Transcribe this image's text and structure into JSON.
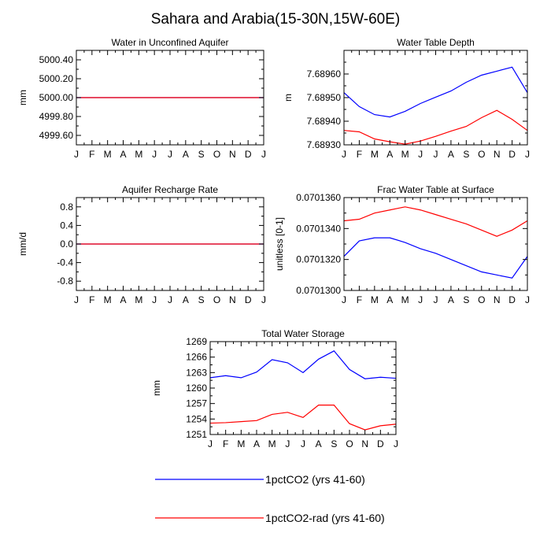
{
  "title": "Sahara and Arabia(15-30N,15W-60E)",
  "legend": [
    {
      "name": "1pctCO2 (yrs 41-60)",
      "color": "#0000ff"
    },
    {
      "name": "1pctCO2-rad (yrs 41-60)",
      "color": "#ff0000"
    }
  ],
  "chart_data": [
    {
      "type": "line",
      "title": "Water in Unconfined Aquifer",
      "ylabel": "mm",
      "x": [
        "J",
        "F",
        "M",
        "A",
        "M",
        "J",
        "J",
        "A",
        "S",
        "O",
        "N",
        "D",
        "J"
      ],
      "ylim": [
        4999.5,
        5000.5
      ],
      "yticks": [
        "4999.60",
        "4999.80",
        "5000.00",
        "5000.20",
        "5000.40"
      ],
      "ytick_values": [
        4999.6,
        4999.8,
        5000.0,
        5000.2,
        5000.4
      ],
      "series": [
        {
          "color": "#0000ff",
          "values": [
            5000,
            5000,
            5000,
            5000,
            5000,
            5000,
            5000,
            5000,
            5000,
            5000,
            5000,
            5000,
            5000
          ]
        },
        {
          "color": "#ff0000",
          "values": [
            5000,
            5000,
            5000,
            5000,
            5000,
            5000,
            5000,
            5000,
            5000,
            5000,
            5000,
            5000,
            5000
          ]
        }
      ]
    },
    {
      "type": "line",
      "title": "Water Table Depth",
      "ylabel": "m",
      "x": [
        "J",
        "F",
        "M",
        "A",
        "M",
        "J",
        "J",
        "A",
        "S",
        "O",
        "N",
        "D",
        "J"
      ],
      "ylim": [
        7.6893,
        7.6897
      ],
      "yticks": [
        "7.68930",
        "7.68940",
        "7.68950",
        "7.68960"
      ],
      "ytick_values": [
        7.6893,
        7.6894,
        7.6895,
        7.6896
      ],
      "series": [
        {
          "color": "#0000ff",
          "values": [
            7.689521,
            7.689462,
            7.689428,
            7.689418,
            7.689442,
            7.689475,
            7.689502,
            7.689528,
            7.689565,
            7.689595,
            7.689612,
            7.689629,
            7.689521
          ]
        },
        {
          "color": "#ff0000",
          "values": [
            7.689361,
            7.689355,
            7.689325,
            7.689313,
            7.689303,
            7.689316,
            7.689336,
            7.689358,
            7.689378,
            7.689415,
            7.689446,
            7.689408,
            7.689361
          ]
        }
      ]
    },
    {
      "type": "line",
      "title": "Aquifer Recharge Rate",
      "ylabel": "mm/d",
      "x": [
        "J",
        "F",
        "M",
        "A",
        "M",
        "J",
        "J",
        "A",
        "S",
        "O",
        "N",
        "D",
        "J"
      ],
      "ylim": [
        -1.0,
        1.0
      ],
      "yticks": [
        "-0.8",
        "-0.4",
        "0.0",
        "0.4",
        "0.8"
      ],
      "ytick_values": [
        -0.8,
        -0.4,
        0.0,
        0.4,
        0.8
      ],
      "series": [
        {
          "color": "#0000ff",
          "values": [
            0,
            0,
            0,
            0,
            0,
            0,
            0,
            0,
            0,
            0,
            0,
            0,
            0
          ]
        },
        {
          "color": "#ff0000",
          "values": [
            0,
            0,
            0,
            0,
            0,
            0,
            0,
            0,
            0,
            0,
            0,
            0,
            0
          ]
        }
      ]
    },
    {
      "type": "line",
      "title": "Frac Water Table at Surface",
      "ylabel": "unitless [0-1]",
      "x": [
        "J",
        "F",
        "M",
        "A",
        "M",
        "J",
        "J",
        "A",
        "S",
        "O",
        "N",
        "D",
        "J"
      ],
      "ylim": [
        0.07013,
        0.070136
      ],
      "yticks": [
        "0.0701300",
        "0.0701320",
        "0.0701340",
        "0.0701360"
      ],
      "ytick_values": [
        0.07013,
        0.070132,
        0.070134,
        0.070136
      ],
      "series": [
        {
          "color": "#0000ff",
          "values": [
            0.0701322,
            0.0701332,
            0.0701334,
            0.0701334,
            0.0701331,
            0.0701327,
            0.0701324,
            0.070132,
            0.0701316,
            0.0701312,
            0.070131,
            0.0701308,
            0.0701322
          ]
        },
        {
          "color": "#ff0000",
          "values": [
            0.0701345,
            0.0701346,
            0.070135,
            0.0701352,
            0.0701354,
            0.0701352,
            0.0701349,
            0.0701346,
            0.0701343,
            0.0701339,
            0.0701335,
            0.0701339,
            0.0701345
          ]
        }
      ]
    },
    {
      "type": "line",
      "title": "Total Water Storage",
      "ylabel": "mm",
      "x": [
        "J",
        "F",
        "M",
        "A",
        "M",
        "J",
        "J",
        "A",
        "S",
        "O",
        "N",
        "D",
        "J"
      ],
      "ylim": [
        1251,
        1269
      ],
      "yticks": [
        "1251",
        "1254",
        "1257",
        "1260",
        "1263",
        "1266",
        "1269"
      ],
      "ytick_values": [
        1251,
        1254,
        1257,
        1260,
        1263,
        1266,
        1269
      ],
      "series": [
        {
          "color": "#0000ff",
          "values": [
            1262.0,
            1262.4,
            1262.0,
            1263.1,
            1265.5,
            1264.9,
            1263.0,
            1265.6,
            1267.2,
            1263.6,
            1261.8,
            1262.1,
            1261.9
          ]
        },
        {
          "color": "#ff0000",
          "values": [
            1253.2,
            1253.3,
            1253.5,
            1253.7,
            1254.9,
            1255.3,
            1254.3,
            1256.7,
            1256.7,
            1253.1,
            1251.9,
            1252.7,
            1253.0
          ]
        }
      ]
    }
  ]
}
